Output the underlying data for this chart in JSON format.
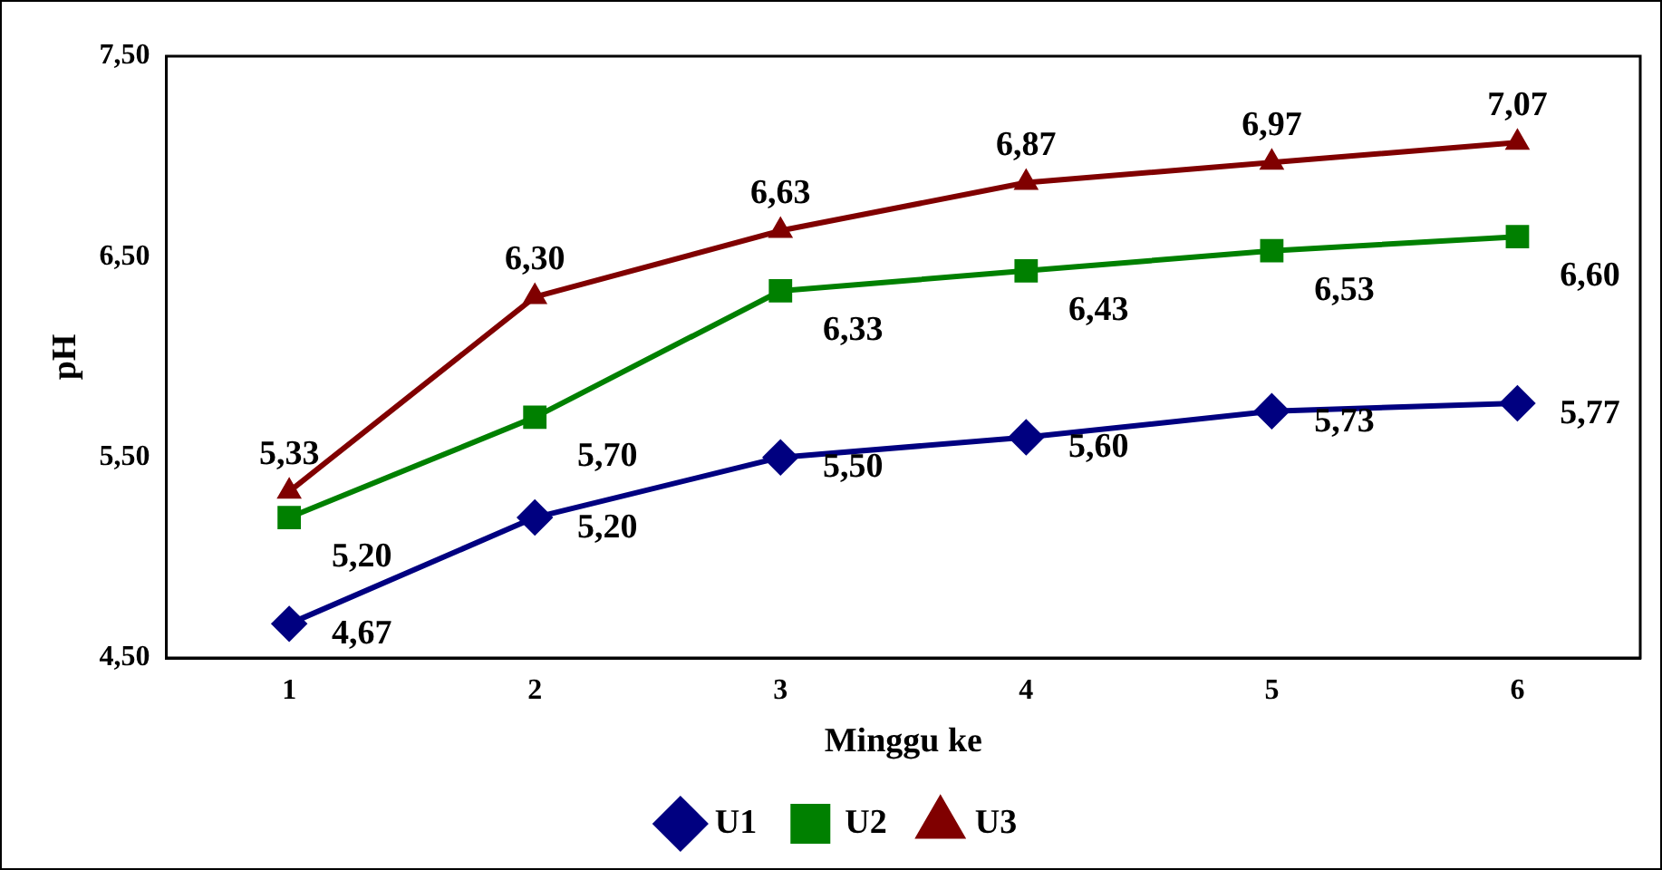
{
  "chart_data": {
    "type": "line",
    "xlabel": "Minggu ke",
    "ylabel": "pH",
    "categories": [
      "1",
      "2",
      "3",
      "4",
      "5",
      "6"
    ],
    "ylim": [
      4.5,
      7.5
    ],
    "yticks": [
      {
        "value": 4.5,
        "label": "4,50"
      },
      {
        "value": 5.5,
        "label": "5,50"
      },
      {
        "value": 6.5,
        "label": "6,50"
      },
      {
        "value": 7.5,
        "label": "7,50"
      }
    ],
    "grid": false,
    "legend": "bottom",
    "line_style": "solid",
    "series": [
      {
        "name": "U1",
        "color": "#000080",
        "marker": "diamond",
        "values": [
          4.67,
          5.2,
          5.5,
          5.6,
          5.73,
          5.77
        ],
        "value_labels": [
          "4,67",
          "5,20",
          "5,50",
          "5,60",
          "5,73",
          "5,77"
        ]
      },
      {
        "name": "U2",
        "color": "#008000",
        "marker": "square",
        "values": [
          5.2,
          5.7,
          6.33,
          6.43,
          6.53,
          6.6
        ],
        "value_labels": [
          "5,20",
          "5,70",
          "6,33",
          "6,43",
          "6,53",
          "6,60"
        ]
      },
      {
        "name": "U3",
        "color": "#800000",
        "marker": "triangle",
        "values": [
          5.33,
          6.3,
          6.63,
          6.87,
          6.97,
          7.07
        ],
        "value_labels": [
          "5,33",
          "6,30",
          "6,63",
          "6,87",
          "6,97",
          "7,07"
        ]
      }
    ]
  }
}
